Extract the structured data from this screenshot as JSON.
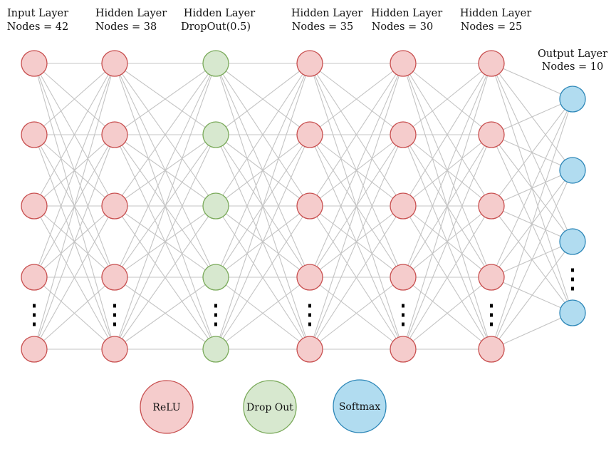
{
  "colors": {
    "relu_fill": "#f5cccc",
    "relu_stroke": "#c84f4f",
    "dropout_fill": "#d7e8cf",
    "dropout_stroke": "#7aaa5a",
    "softmax_fill": "#b1dcf0",
    "softmax_stroke": "#2d87b8",
    "edge": "#c4c4c4"
  },
  "layers": [
    {
      "title_line1": "Input Layer",
      "title_line2": "Nodes = 42",
      "activation": "relu",
      "ellipsis": true
    },
    {
      "title_line1": "Hidden Layer",
      "title_line2": "Nodes = 38",
      "activation": "relu",
      "ellipsis": true
    },
    {
      "title_line1": "Hidden Layer",
      "title_line2": "DropOut(0.5)",
      "activation": "dropout",
      "ellipsis": true
    },
    {
      "title_line1": "Hidden Layer",
      "title_line2": "Nodes = 35",
      "activation": "relu",
      "ellipsis": true
    },
    {
      "title_line1": "Hidden Layer",
      "title_line2": "Nodes = 30",
      "activation": "relu",
      "ellipsis": true
    },
    {
      "title_line1": "Hidden Layer",
      "title_line2": "Nodes = 25",
      "activation": "relu",
      "ellipsis": true
    },
    {
      "title_line1": "Output Layer",
      "title_line2": "Nodes = 10",
      "activation": "softmax",
      "ellipsis": true
    }
  ],
  "legend": [
    {
      "label": "ReLU",
      "activation": "relu"
    },
    {
      "label": "Drop Out",
      "activation": "dropout"
    },
    {
      "label": "Softmax",
      "activation": "softmax"
    }
  ]
}
